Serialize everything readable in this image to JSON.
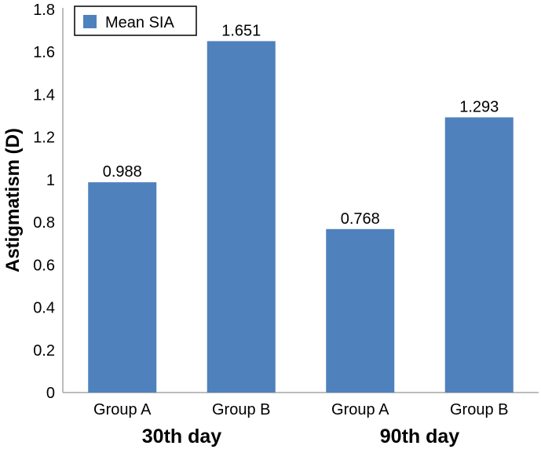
{
  "chart_data": {
    "type": "bar",
    "title": "",
    "ylabel": "Astigmatism (D)",
    "xlabel": "",
    "ylim": [
      0,
      1.8
    ],
    "yticks": [
      "0",
      "0.2",
      "0.4",
      "0.6",
      "0.8",
      "1",
      "1.2",
      "1.4",
      "1.6",
      "1.8"
    ],
    "categories": [
      "Group A",
      "Group B",
      "Group A",
      "Group B"
    ],
    "groups": [
      "30th day",
      "90th day"
    ],
    "series": [
      {
        "name": "Mean SIA",
        "values": [
          0.988,
          1.651,
          0.768,
          1.293
        ],
        "labels": [
          "0.988",
          "1.651",
          "0.768",
          "1.293"
        ],
        "color": "#4f81bd"
      }
    ],
    "legend": {
      "label": "Mean SIA",
      "placement": "top-left"
    },
    "grid": false
  }
}
